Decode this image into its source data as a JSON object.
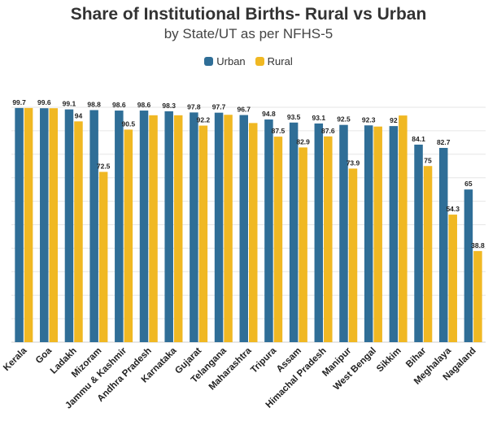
{
  "colors": {
    "urban": "#2f6e97",
    "rural": "#f0b823",
    "grid": "#e6e6e6",
    "label": "#222222"
  },
  "chart_data": {
    "type": "bar",
    "title": "Share of Institutional Births- Rural vs Urban",
    "subtitle": "by State/UT as per NFHS-5",
    "legend_position": "top-center",
    "grid": true,
    "ylim": [
      0,
      100
    ],
    "categories": [
      "Kerala",
      "Goa",
      "Ladakh",
      "Mizoram",
      "Jammu & Kashmir",
      "Andhra Pradesh",
      "Karnataka",
      "Gujarat",
      "Telangana",
      "Maharashtra",
      "Tripura",
      "Assam",
      "Himachal Pradesh",
      "Manipur",
      "West Bengal",
      "Sikkim",
      "Bihar",
      "Meghalaya",
      "Nagaland"
    ],
    "series": [
      {
        "name": "Urban",
        "color_key": "urban",
        "values": [
          99.7,
          99.6,
          99.1,
          98.8,
          98.6,
          98.6,
          98.3,
          97.8,
          97.7,
          96.7,
          94.8,
          93.5,
          93.1,
          92.5,
          92.3,
          92,
          84.1,
          82.7,
          65
        ],
        "labels": [
          "99.7",
          "99.6",
          "99.1",
          "98.8",
          "98.6",
          "98.6",
          "98.3",
          "97.8",
          "97.7",
          "96.7",
          "94.8",
          "93.5",
          "93.1",
          "92.5",
          "92.3",
          "92",
          "84.1",
          "82.7",
          "65"
        ]
      },
      {
        "name": "Rural",
        "color_key": "rural",
        "values": [
          99.7,
          99.6,
          94,
          72.5,
          90.5,
          96.6,
          96.6,
          92.2,
          96.8,
          93.3,
          87.5,
          82.9,
          87.6,
          73.9,
          91.8,
          96.5,
          75,
          54.3,
          38.8
        ],
        "labels": [
          "",
          "",
          "94",
          "72.5",
          "90.5",
          "",
          "",
          "92.2",
          "",
          "",
          "87.5",
          "82.9",
          "87.6",
          "73.9",
          "",
          "",
          "75",
          "54.3",
          "38.8"
        ]
      }
    ]
  }
}
